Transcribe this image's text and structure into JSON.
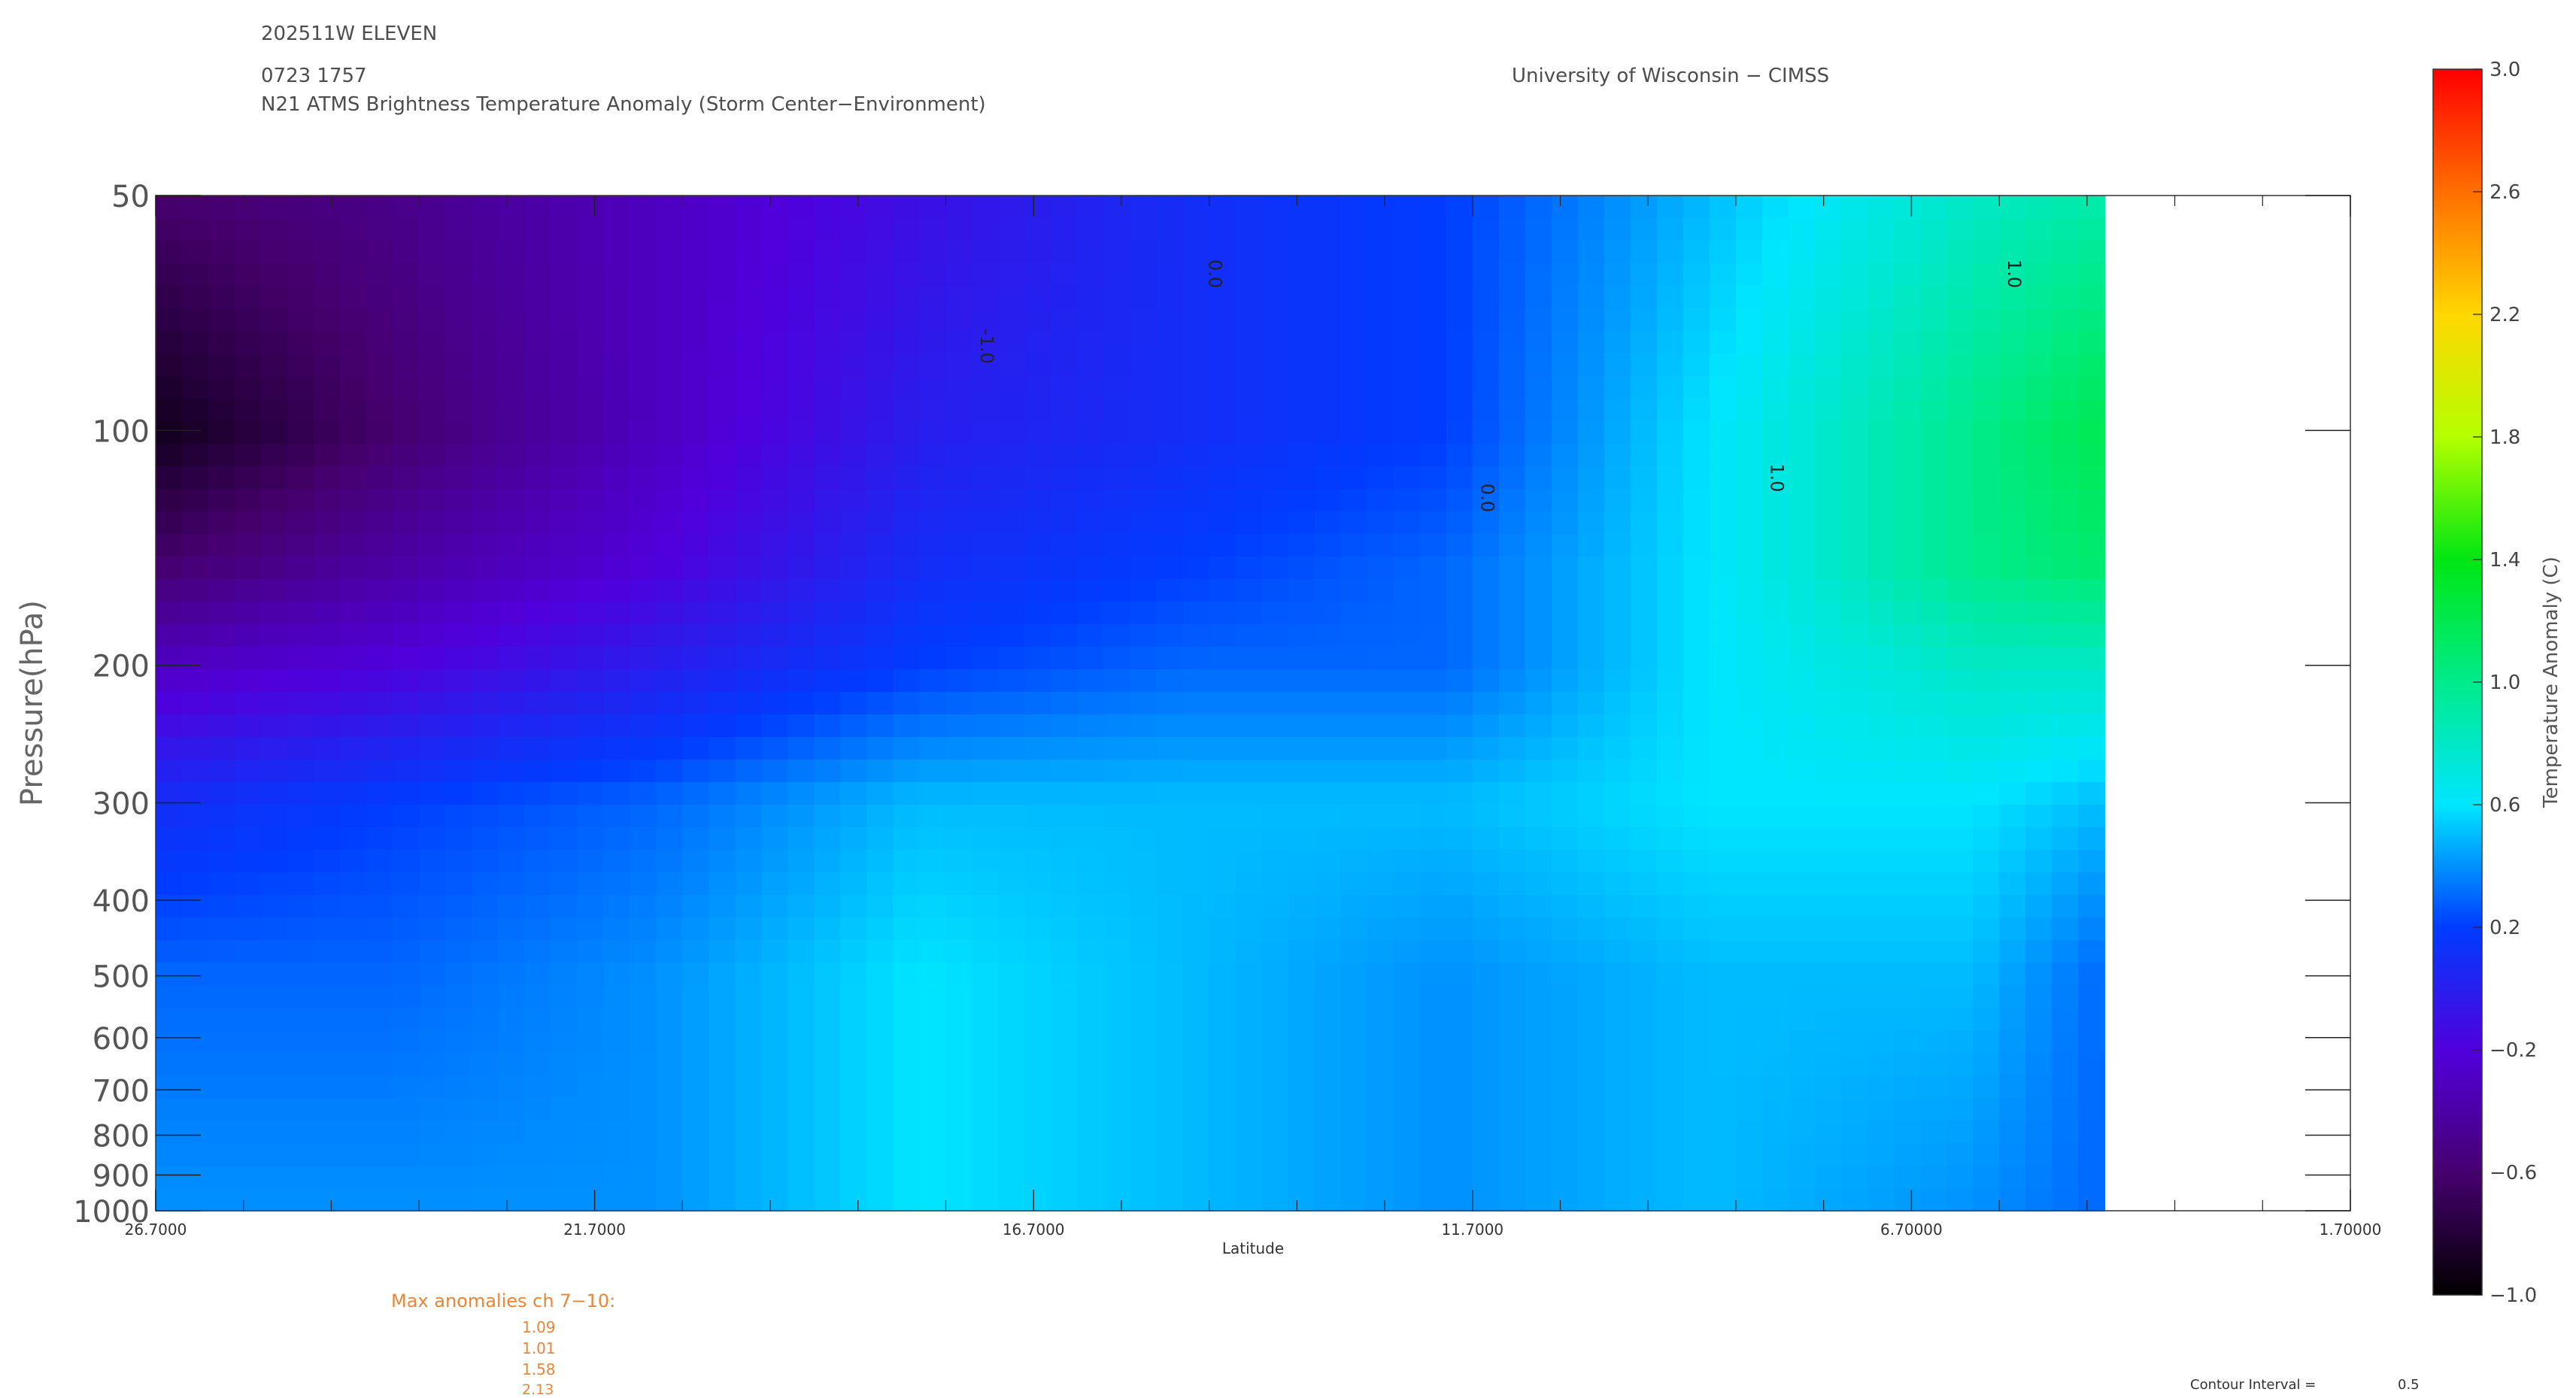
{
  "header": {
    "storm": "202511W ELEVEN",
    "datetime": "0723 1757",
    "product": "N21 ATMS Brightness Temperature Anomaly (Storm Center−Environment)",
    "institution": "University of Wisconsin − CIMSS"
  },
  "chart_data": {
    "type": "heatmap",
    "title": "N21 ATMS Brightness Temperature Anomaly (Storm Center−Environment)",
    "xlabel": "Latitude",
    "ylabel": "Pressure(hPa)",
    "x_reversed": true,
    "xlim": [
      26.7,
      1.7
    ],
    "x_ticks": [
      26.7,
      21.7,
      16.7,
      11.7,
      6.7,
      1.7
    ],
    "x_tick_labels": [
      "26.7000",
      "21.7000",
      "16.7000",
      "11.7000",
      "6.70000",
      "1.70000"
    ],
    "y_scale": "log",
    "y_reversed": true,
    "ylim": [
      1000,
      50
    ],
    "y_ticks": [
      50,
      100,
      200,
      300,
      400,
      500,
      600,
      700,
      800,
      900,
      1000
    ],
    "y_tick_labels": [
      "50",
      "100",
      "200",
      "300",
      "400",
      "500",
      "600",
      "700",
      "800",
      "900",
      "1000"
    ],
    "data_extent_lat": [
      26.7,
      4.5
    ],
    "columns_lat": [
      26.7,
      24.0,
      21.0,
      18.0,
      15.0,
      12.0,
      9.0,
      6.0,
      4.5
    ],
    "rows_hpa": [
      50,
      100,
      150,
      200,
      300,
      500,
      1000
    ],
    "z": [
      [
        -0.6,
        -0.5,
        -0.3,
        -0.1,
        0.1,
        0.2,
        0.5,
        0.8,
        0.9
      ],
      [
        -0.9,
        -0.6,
        -0.3,
        0.0,
        0.1,
        0.2,
        0.6,
        1.0,
        1.2
      ],
      [
        -0.6,
        -0.4,
        -0.2,
        0.1,
        0.2,
        0.3,
        0.6,
        1.0,
        1.1
      ],
      [
        -0.3,
        -0.2,
        0.0,
        0.2,
        0.3,
        0.3,
        0.6,
        0.8,
        0.8
      ],
      [
        0.1,
        0.2,
        0.3,
        0.5,
        0.5,
        0.5,
        0.6,
        0.6,
        0.5
      ],
      [
        0.3,
        0.3,
        0.4,
        0.6,
        0.5,
        0.4,
        0.5,
        0.5,
        0.3
      ],
      [
        0.4,
        0.4,
        0.4,
        0.6,
        0.5,
        0.4,
        0.5,
        0.4,
        0.3
      ]
    ],
    "contour_labels": [
      {
        "text": "-1.0",
        "lat": 17.3,
        "p": 78
      },
      {
        "text": "0.0",
        "lat": 14.7,
        "p": 63
      },
      {
        "text": "0.0",
        "lat": 11.6,
        "p": 122
      },
      {
        "text": "1.0",
        "lat": 8.3,
        "p": 115
      },
      {
        "text": "1.0",
        "lat": 5.6,
        "p": 63
      }
    ],
    "colorbar": {
      "label": "Temperature Anomaly (C)",
      "range": [
        -1.0,
        3.0
      ],
      "tick_labels": [
        "−1.0",
        "−0.6",
        "−0.2",
        "0.2",
        "0.6",
        "1.0",
        "1.4",
        "1.8",
        "2.2",
        "2.6",
        "3.0"
      ]
    }
  },
  "max_anomalies": {
    "title": "Max anomalies ch 7−10:",
    "values": [
      "1.09",
      "1.01",
      "1.58",
      "2.13"
    ]
  },
  "contour_interval": {
    "label": "Contour Interval =",
    "value": "0.5"
  }
}
